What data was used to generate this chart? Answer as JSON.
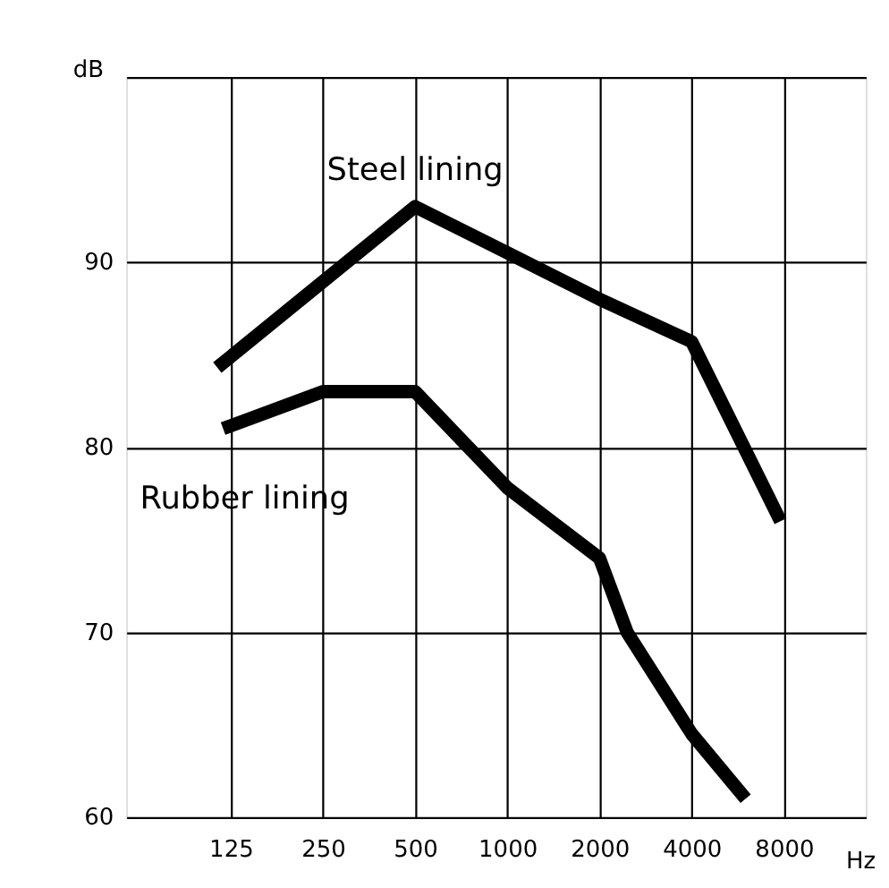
{
  "chart_data": {
    "type": "line",
    "xlabel": "Hz",
    "ylabel": "dB",
    "log": "x",
    "xlim": [
      57,
      14800
    ],
    "xticks": [
      125,
      250,
      500,
      1000,
      2000,
      4000,
      8000
    ],
    "ylim": [
      60,
      100
    ],
    "yticks": [
      60,
      70,
      80,
      90,
      {
        "value": 100,
        "label": null
      }
    ],
    "grid": true,
    "marker": "none",
    "line_style": "solid",
    "series": [
      {
        "name": "Steel lining",
        "color": "#000000",
        "x": [
          113,
          500,
          1000,
          2000,
          4000,
          7800
        ],
        "values": [
          84.3,
          93,
          90.5,
          88,
          85.7,
          76
        ]
      },
      {
        "name": "Rubber lining",
        "color": "#000000",
        "x": [
          118,
          250,
          500,
          1000,
          2000,
          2460,
          4000,
          6000
        ],
        "values": [
          81,
          83,
          83,
          77.8,
          74,
          70,
          64.5,
          61
        ]
      }
    ]
  }
}
